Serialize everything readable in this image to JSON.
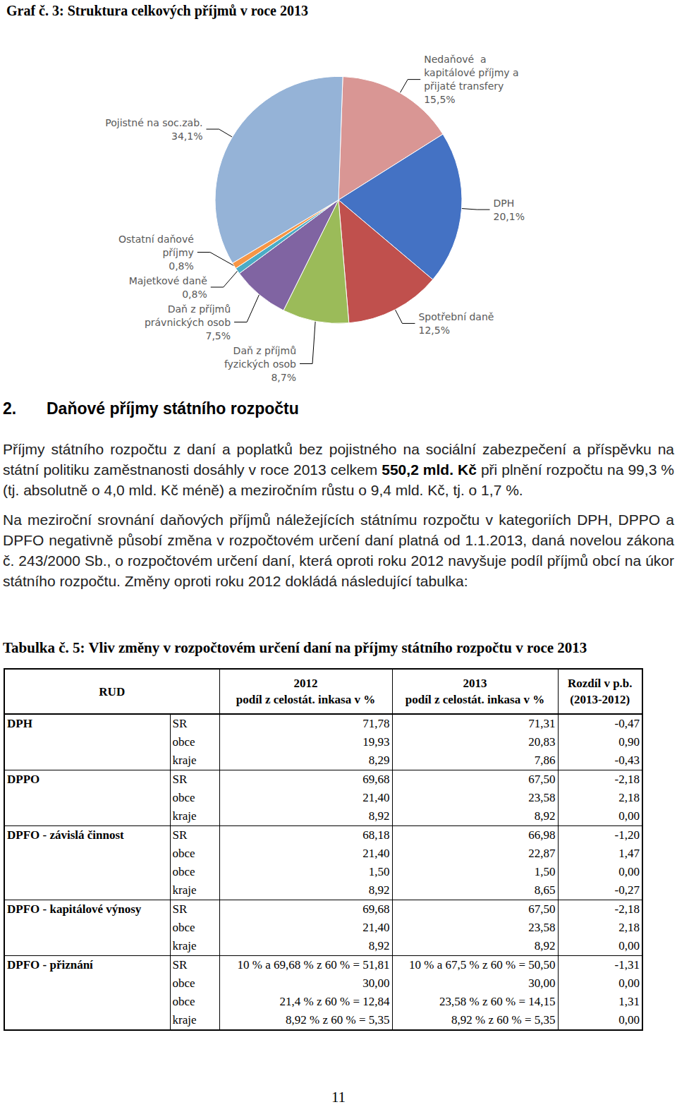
{
  "chart_data": {
    "type": "pie",
    "title": "Graf č. 3: Struktura celkových příjmů v roce 2013",
    "categories": [
      "Nedaňové  a\nkapitálové příjmy a\npřijaté transfery",
      "DPH",
      "Spotřební daně",
      "Daň z příjmů\nfyzických osob",
      "Daň z příjmů\nprávnických osob",
      "Majetkové daně",
      "Ostatní daňové\npříjmy",
      "Pojistné na soc.zab."
    ],
    "values": [
      15.5,
      20.1,
      12.5,
      8.7,
      7.5,
      0.8,
      0.8,
      34.1
    ],
    "value_labels": [
      "15,5%",
      "20,1%",
      "12,5%",
      "8,7%",
      "7,5%",
      "0,8%",
      "0,8%",
      "34,1%"
    ],
    "colors": [
      "#d99694",
      "#4472c4",
      "#c0504d",
      "#9bbb59",
      "#8064a2",
      "#4bacc6",
      "#f79646",
      "#95b3d7"
    ],
    "data_labels": true
  },
  "document": {
    "heading": {
      "number": "2.",
      "text": "Daňové příjmy státního rozpočtu"
    },
    "paragraphs": [
      [
        {
          "text": "Příjmy státního rozpočtu z daní a poplatků bez pojistného na sociální zabezpečení a příspěvku na státní politiku zaměstnanosti dosáhly v roce 2013 celkem ",
          "bold": false
        },
        {
          "text": "550,2 mld. Kč",
          "bold": true
        },
        {
          "text": " při plnění rozpočtu na 99,3 % (tj. absolutně o 4,0 mld. Kč méně) a meziročním růstu o 9,4 mld. Kč, tj. o 1,7 %.",
          "bold": false
        }
      ],
      [
        {
          "text": "Na meziroční srovnání daňových příjmů náležejících státnímu rozpočtu v kategoriích DPH, DPPO a DPFO negativně působí změna v rozpočtovém určení daní platná od 1.1.2013, daná novelou zákona č. 243/2000 Sb., o rozpočtovém určení daní, která oproti roku 2012 navyšuje podíl příjmů obcí na úkor státního rozpočtu. Změny oproti roku 2012 dokládá následující tabulka:",
          "bold": false
        }
      ]
    ],
    "table": {
      "title": "Tabulka č. 5: Vliv změny v rozpočtovém určení daní na příjmy státního rozpočtu v roce 2013",
      "header": [
        "RUD",
        "2012\npodíl z celostát. inkasa v %",
        "2013\npodíl z celostát. inkasa v %",
        "Rozdíl v p.b.\n(2013-2012)"
      ],
      "groups": [
        {
          "name": "DPH",
          "rows": [
            [
              "SR",
              "71,78",
              "71,31",
              "-0,47"
            ],
            [
              "obce",
              "19,93",
              "20,83",
              "0,90"
            ],
            [
              "kraje",
              "8,29",
              "7,86",
              "-0,43"
            ]
          ]
        },
        {
          "name": "DPPO",
          "rows": [
            [
              "SR",
              "69,68",
              "67,50",
              "-2,18"
            ],
            [
              "obce",
              "21,40",
              "23,58",
              "2,18"
            ],
            [
              "kraje",
              "8,92",
              "8,92",
              "0,00"
            ]
          ]
        },
        {
          "name": "DPFO - závislá činnost",
          "rows": [
            [
              "SR",
              "68,18",
              "66,98",
              "-1,20"
            ],
            [
              "obce",
              "21,40",
              "22,87",
              "1,47"
            ],
            [
              "obce",
              "1,50",
              "1,50",
              "0,00"
            ],
            [
              "kraje",
              "8,92",
              "8,65",
              "-0,27"
            ]
          ]
        },
        {
          "name": "DPFO - kapitálové výnosy",
          "rows": [
            [
              "SR",
              "69,68",
              "67,50",
              "-2,18"
            ],
            [
              "obce",
              "21,40",
              "23,58",
              "2,18"
            ],
            [
              "kraje",
              "8,92",
              "8,92",
              "0,00"
            ]
          ]
        },
        {
          "name": "DPFO - přiznání",
          "rows": [
            [
              "SR",
              "10 % a 69,68 % z 60 % = 51,81",
              "10 % a 67,5 % z 60 % = 50,50",
              "-1,31"
            ],
            [
              "obce",
              "30,00",
              "30,00",
              "0,00"
            ],
            [
              "obce",
              "21,4 % z 60 % = 12,84",
              "23,58 % z 60 % = 14,15",
              "1,31"
            ],
            [
              "kraje",
              "8,92 % z 60 % = 5,35",
              "8,92 % z 60 % = 5,35",
              "0,00"
            ]
          ]
        }
      ]
    },
    "page_number": "11"
  }
}
